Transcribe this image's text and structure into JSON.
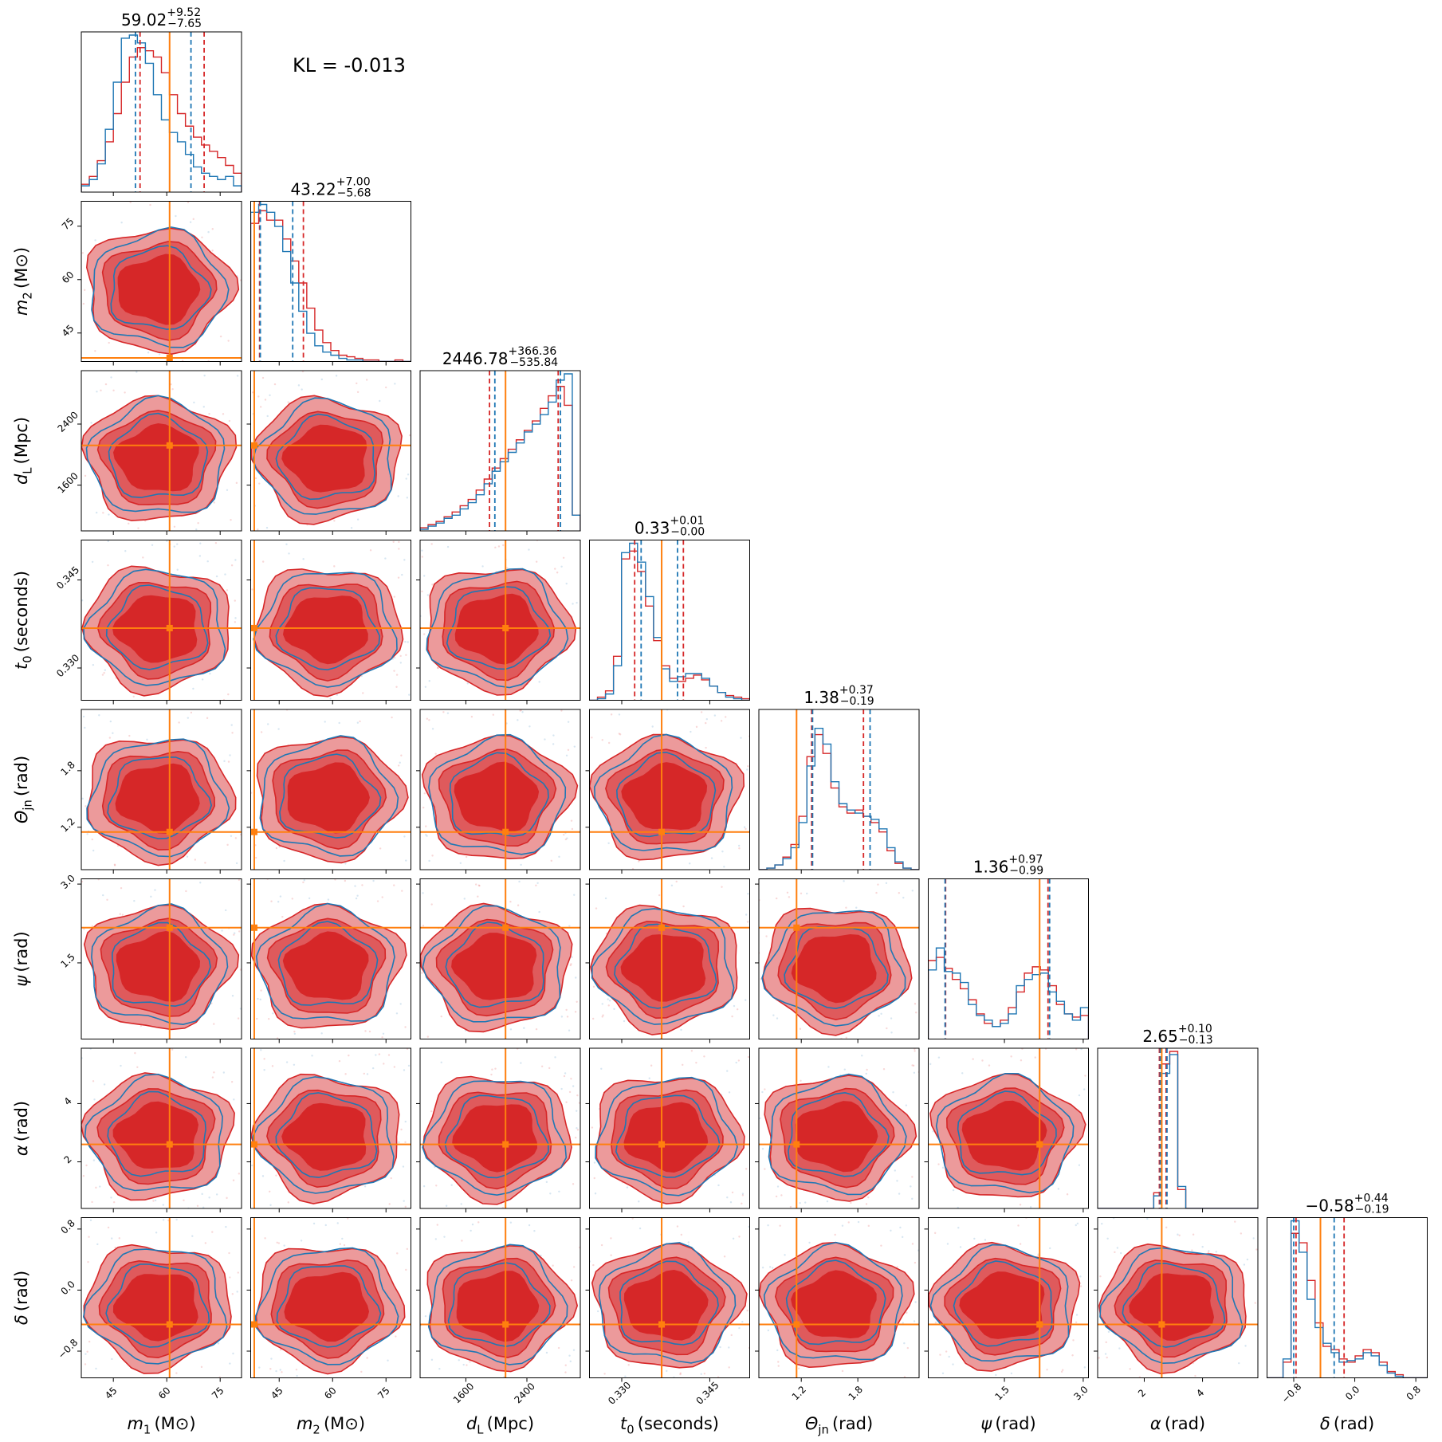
{
  "annotation": "KL = -0.013",
  "colors": {
    "series_a": "#d62728",
    "series_b": "#1f77b4",
    "truth": "#ff7f0e",
    "fill_inner": "#d62728",
    "fill_outer": "#ec9a9b"
  },
  "chart_data": {
    "type": "corner",
    "params": [
      {
        "label_main": "m",
        "label_sub": "1",
        "label_unit": "(M⊙)",
        "title_main": "59.02",
        "title_sup": "+9.52",
        "title_sub": "−7.65",
        "range": [
          36,
          81
        ],
        "ticks": [
          45,
          60,
          75
        ],
        "truth": 60.8,
        "q_red": [
          52.5,
          70.5
        ],
        "q_blue": [
          51.2,
          66.8
        ]
      },
      {
        "label_main": "m",
        "label_sub": "2",
        "label_unit": "(M⊙)",
        "title_main": "43.22",
        "title_sup": "+7.00",
        "title_sub": "−5.68",
        "range": [
          37,
          82
        ],
        "ticks": [
          45,
          60,
          75
        ],
        "truth": 38.0,
        "q_red": [
          39.5,
          51.8
        ],
        "q_blue": [
          39.7,
          48.8
        ]
      },
      {
        "label_main": "d",
        "label_sub": "L",
        "label_unit": "(Mpc)",
        "title_main": "2446.78",
        "title_sup": "+366.36",
        "title_sub": "−535.84",
        "range": [
          1000,
          3100
        ],
        "ticks": [
          1600,
          2400
        ],
        "truth": 2120,
        "q_red": [
          1910,
          2810
        ],
        "q_blue": [
          1980,
          2840
        ]
      },
      {
        "label_main": "t",
        "label_sub": "0",
        "label_unit": "(seconds)",
        "title_main": "0.33",
        "title_sup": "+0.01",
        "title_sub": "−0.00",
        "range": [
          0.3245,
          0.3518
        ],
        "ticks": [
          0.33,
          0.345
        ],
        "truth": 0.3368,
        "q_red": [
          0.3322,
          0.3405
        ],
        "q_blue": [
          0.3333,
          0.3395
        ]
      },
      {
        "label_main": "Θ",
        "label_sub": "jn",
        "label_unit": "(rad)",
        "title_main": "1.38",
        "title_sup": "+0.37",
        "title_sub": "−0.19",
        "range": [
          0.75,
          2.45
        ],
        "ticks": [
          1.2,
          1.8
        ],
        "truth": 1.15,
        "q_red": [
          1.31,
          1.86
        ],
        "q_blue": [
          1.32,
          1.93
        ]
      },
      {
        "label_main": "ψ",
        "label_sub": "",
        "label_unit": "(rad)",
        "title_main": "1.36",
        "title_sup": "+0.97",
        "title_sub": "−0.99",
        "range": [
          0.05,
          3.1
        ],
        "ticks": [
          1.5,
          3.0
        ],
        "truth": 2.17,
        "q_red": [
          0.38,
          2.33
        ],
        "q_blue": [
          0.37,
          2.36
        ]
      },
      {
        "label_main": "α",
        "label_sub": "",
        "label_unit": "(rad)",
        "title_main": "2.65",
        "title_sup": "+0.10",
        "title_sub": "−0.13",
        "range": [
          0.4,
          5.9
        ],
        "ticks": [
          2,
          4
        ],
        "truth": 2.6,
        "q_red": [
          2.52,
          2.75
        ],
        "q_blue": [
          2.55,
          2.78
        ]
      },
      {
        "label_main": "δ",
        "label_sub": "",
        "label_unit": "(rad)",
        "title_main": "−0.58",
        "title_sup": "+0.44",
        "title_sub": "−0.19",
        "range": [
          -1.15,
          0.95
        ],
        "ticks": [
          -0.8,
          0.0,
          0.8
        ],
        "truth": -0.45,
        "q_red": [
          -0.77,
          -0.14
        ],
        "q_blue": [
          -0.8,
          -0.27
        ]
      }
    ],
    "histograms": [
      {
        "red": [
          0.05,
          0.1,
          0.2,
          0.32,
          0.5,
          0.7,
          0.86,
          0.92,
          0.9,
          0.86,
          0.76,
          0.62,
          0.5,
          0.42,
          0.35,
          0.3,
          0.26,
          0.22,
          0.17,
          0.12
        ],
        "blue": [
          0.04,
          0.08,
          0.18,
          0.4,
          0.7,
          0.98,
          1.0,
          0.95,
          0.82,
          0.62,
          0.46,
          0.38,
          0.32,
          0.24,
          0.16,
          0.12,
          0.1,
          0.08,
          0.1,
          0.04
        ]
      },
      {
        "red": [
          0.88,
          0.96,
          0.9,
          0.9,
          0.78,
          0.64,
          0.5,
          0.34,
          0.2,
          0.12,
          0.07,
          0.04,
          0.03,
          0.02,
          0.01,
          0.01,
          0.0,
          0.0,
          0.01,
          0.0
        ],
        "blue": [
          0.95,
          1.0,
          0.95,
          0.86,
          0.7,
          0.5,
          0.32,
          0.18,
          0.1,
          0.06,
          0.04,
          0.02,
          0.01,
          0.01,
          0.0,
          0.0,
          0.0,
          0.0,
          0.0,
          0.0
        ]
      },
      {
        "red": [
          0.02,
          0.04,
          0.06,
          0.09,
          0.12,
          0.16,
          0.2,
          0.26,
          0.33,
          0.4,
          0.46,
          0.52,
          0.58,
          0.64,
          0.7,
          0.78,
          0.86,
          0.92,
          0.8,
          0.1
        ],
        "blue": [
          0.01,
          0.03,
          0.05,
          0.08,
          0.1,
          0.14,
          0.18,
          0.23,
          0.3,
          0.38,
          0.44,
          0.5,
          0.56,
          0.63,
          0.68,
          0.74,
          0.82,
          0.96,
          1.0,
          0.1
        ]
      },
      {
        "red": [
          0.0,
          0.02,
          0.06,
          0.28,
          0.9,
          0.95,
          0.82,
          0.6,
          0.38,
          0.22,
          0.14,
          0.12,
          0.14,
          0.16,
          0.13,
          0.09,
          0.05,
          0.03,
          0.02,
          0.01
        ],
        "blue": [
          0.0,
          0.01,
          0.04,
          0.22,
          0.94,
          1.0,
          0.88,
          0.66,
          0.4,
          0.2,
          0.12,
          0.15,
          0.17,
          0.17,
          0.14,
          0.09,
          0.05,
          0.02,
          0.01,
          0.0
        ]
      },
      {
        "red": [
          0.0,
          0.01,
          0.03,
          0.08,
          0.16,
          0.34,
          0.72,
          0.86,
          0.74,
          0.52,
          0.4,
          0.36,
          0.38,
          0.34,
          0.3,
          0.24,
          0.12,
          0.04,
          0.01,
          0.0
        ],
        "blue": [
          0.0,
          0.01,
          0.03,
          0.07,
          0.14,
          0.3,
          0.66,
          0.9,
          0.8,
          0.56,
          0.42,
          0.38,
          0.36,
          0.34,
          0.32,
          0.26,
          0.14,
          0.05,
          0.01,
          0.0
        ]
      },
      {
        "red": [
          0.5,
          0.52,
          0.45,
          0.38,
          0.32,
          0.25,
          0.16,
          0.1,
          0.08,
          0.12,
          0.2,
          0.3,
          0.42,
          0.46,
          0.44,
          0.34,
          0.22,
          0.16,
          0.14,
          0.15
        ],
        "blue": [
          0.44,
          0.58,
          0.43,
          0.42,
          0.36,
          0.22,
          0.15,
          0.12,
          0.08,
          0.1,
          0.16,
          0.34,
          0.38,
          0.41,
          0.42,
          0.3,
          0.24,
          0.16,
          0.12,
          0.2
        ]
      },
      {
        "red": [
          0.0,
          0.0,
          0.0,
          0.0,
          0.0,
          0.0,
          0.0,
          0.1,
          0.92,
          1.0,
          0.12,
          0.0,
          0.0,
          0.0,
          0.0,
          0.0,
          0.0,
          0.0,
          0.0,
          0.0
        ],
        "blue": [
          0.0,
          0.0,
          0.0,
          0.0,
          0.0,
          0.0,
          0.0,
          0.08,
          0.86,
          0.98,
          0.14,
          0.0,
          0.0,
          0.0,
          0.0,
          0.0,
          0.0,
          0.0,
          0.0,
          0.0
        ]
      },
      {
        "red": [
          0.0,
          0.0,
          0.1,
          0.92,
          0.86,
          0.62,
          0.35,
          0.2,
          0.18,
          0.12,
          0.1,
          0.14,
          0.18,
          0.16,
          0.1,
          0.04,
          0.02,
          0.0,
          0.0,
          0.0
        ],
        "blue": [
          0.0,
          0.0,
          0.12,
          1.0,
          0.8,
          0.5,
          0.32,
          0.22,
          0.16,
          0.1,
          0.11,
          0.12,
          0.16,
          0.14,
          0.08,
          0.03,
          0.01,
          0.0,
          0.0,
          0.0
        ]
      }
    ]
  }
}
